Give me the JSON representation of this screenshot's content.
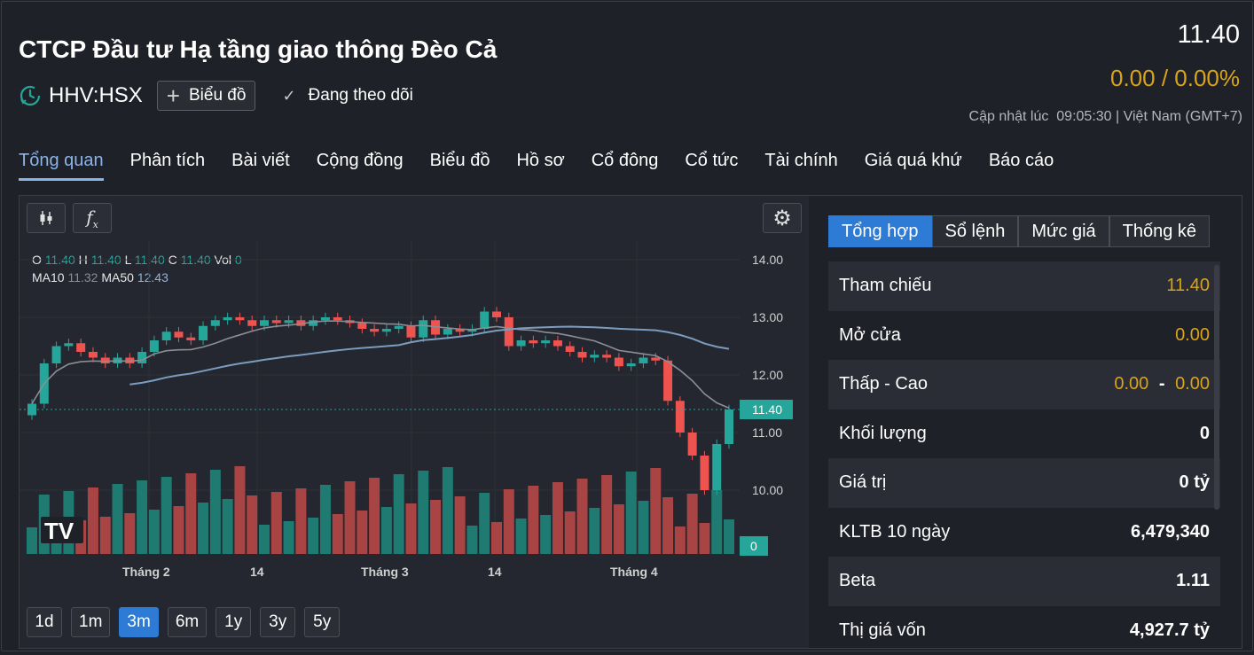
{
  "header": {
    "company": "CTCP Đầu tư Hạ tầng giao thông Đèo Cả",
    "ticker": "HHV:HSX",
    "chart_button": "Biểu đồ",
    "follow_label": "Đang theo dõi",
    "price": "11.40",
    "change": "0.00 / 0.00%",
    "updated": "Cập nhật lúc  09:05:30 | Việt Nam (GMT+7)"
  },
  "tabs": [
    "Tổng quan",
    "Phân tích",
    "Bài viết",
    "Cộng đồng",
    "Biểu đồ",
    "Hồ sơ",
    "Cổ đông",
    "Cổ tức",
    "Tài chính",
    "Giá quá khứ",
    "Báo cáo"
  ],
  "chart": {
    "legend": {
      "o_label": "O",
      "o": "11.40",
      "h_label": "H",
      "h": "11.40",
      "l_label": "L",
      "l": "11.40",
      "c_label": "C",
      "c": "11.40",
      "vol_label": "Vol",
      "vol": "0",
      "ma10_label": "MA10",
      "ma10": "11.32",
      "ma50_label": "MA50",
      "ma50": "12.43"
    },
    "price_ticks": [
      "14.00",
      "13.00",
      "12.00",
      "11.00",
      "10.00"
    ],
    "current_price_tag": "11.40",
    "volume_tag": "0",
    "time_ticks": [
      "Tháng 2",
      "14",
      "Tháng 3",
      "14",
      "Tháng 4"
    ],
    "ranges": [
      "1d",
      "1m",
      "3m",
      "6m",
      "1y",
      "3y",
      "5y"
    ],
    "active_range": "3m",
    "colors": {
      "up": "#26a69a",
      "down": "#ef5350",
      "ma10": "#8b8e96",
      "ma50": "#7b9cc0"
    }
  },
  "side": {
    "tabs": [
      "Tổng hợp",
      "Sổ lệnh",
      "Mức giá",
      "Thống kê"
    ],
    "stats": [
      {
        "label": "Tham chiếu",
        "value": "11.40"
      },
      {
        "label": "Mở cửa",
        "value": "0.00"
      },
      {
        "label": "Thấp - Cao",
        "low": "0.00",
        "sep": "-",
        "high": "0.00"
      },
      {
        "label": "Khối lượng",
        "value": "0"
      },
      {
        "label": "Giá trị",
        "value": "0 tỷ"
      },
      {
        "label": "KLTB 10 ngày",
        "value": "6,479,340"
      },
      {
        "label": "Beta",
        "value": "1.11"
      },
      {
        "label": "Thị giá vốn",
        "value": "4,927.7 tỷ"
      }
    ]
  }
}
